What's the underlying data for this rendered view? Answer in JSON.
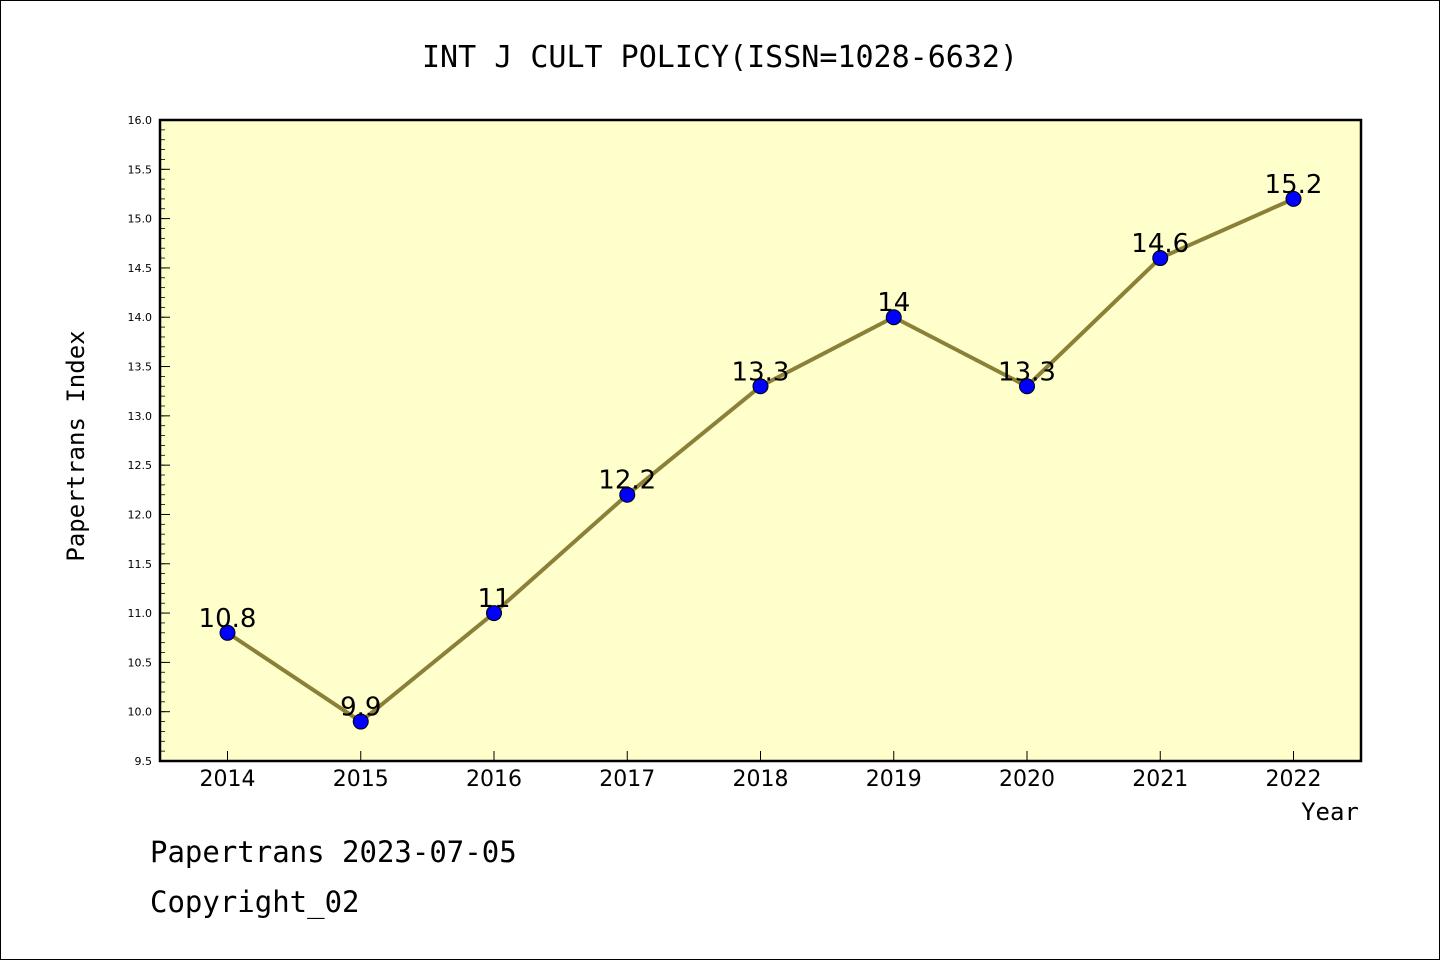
{
  "chart_data": {
    "type": "line",
    "title": "INT J CULT POLICY(ISSN=1028-6632)",
    "xlabel": "Year",
    "ylabel": "Papertrans Index",
    "x": [
      "2014",
      "2015",
      "2016",
      "2017",
      "2018",
      "2019",
      "2020",
      "2021",
      "2022"
    ],
    "series": [
      {
        "values": [
          10.8,
          9.9,
          11,
          12.2,
          13.3,
          14,
          13.3,
          14.6,
          15.2
        ],
        "labels": [
          "10.8",
          "9.9",
          "11",
          "12.2",
          "13.3",
          "14",
          "13.3",
          "14.6",
          "15.2"
        ]
      }
    ],
    "ylim": [
      9.5,
      16.0
    ],
    "yticks": [
      "9.5",
      "10.0",
      "10.5",
      "11.0",
      "11.5",
      "12.0",
      "12.5",
      "13.0",
      "13.5",
      "14.0",
      "14.5",
      "15.0",
      "15.5",
      "16.0"
    ],
    "grid": false,
    "colors": {
      "plot_bg": "#ffffcc",
      "line": "#8b8038",
      "marker": "#0000ff"
    }
  },
  "footer": {
    "line1": "Papertrans 2023-07-05",
    "line2": "Copyright_02"
  }
}
